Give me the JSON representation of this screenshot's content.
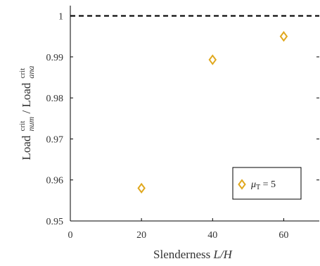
{
  "chart_data": {
    "type": "scatter",
    "title": "",
    "xlabel": "Slenderness L/H",
    "xlabel_parts": {
      "prefix": "Slenderness ",
      "italic": "L/H"
    },
    "ylabel_parts": {
      "load1": "Load",
      "sup1": "crit",
      "sub1": "num",
      "slash": " / ",
      "load2": "Load",
      "sup2": "crit",
      "sub2": "ana"
    },
    "xlim": [
      0,
      70
    ],
    "ylim": [
      0.95,
      1.0025
    ],
    "xticks": [
      0,
      20,
      40,
      60
    ],
    "xtick_labels": [
      "0",
      "20",
      "40",
      "60"
    ],
    "yticks": [
      0.95,
      0.96,
      0.97,
      0.98,
      0.99,
      1.0
    ],
    "ytick_labels": [
      "0.95",
      "0.96",
      "0.97",
      "0.98",
      "0.99",
      "1"
    ],
    "grid": false,
    "reference_line": {
      "y": 1.0,
      "style": "dashed",
      "color": "#000000"
    },
    "series": [
      {
        "name": "μT = 5",
        "marker": "diamond",
        "color": "#e0a81e",
        "x": [
          20,
          40,
          60
        ],
        "y": [
          0.958,
          0.9893,
          0.995
        ]
      }
    ],
    "legend": {
      "placement": "bottom-right",
      "symbol": "μ",
      "subscript": "T",
      "value_text": " = 5"
    }
  }
}
